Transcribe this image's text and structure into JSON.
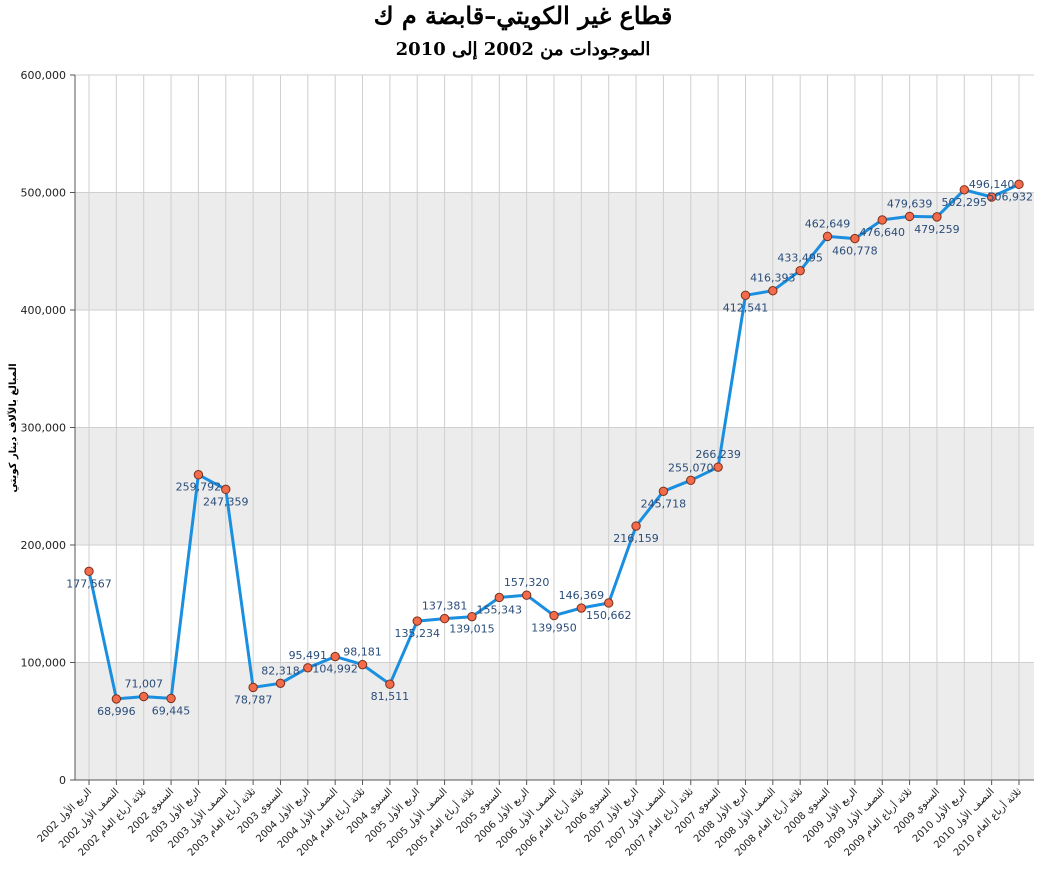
{
  "chart_data": {
    "type": "line",
    "title": "قطاع غير الكويتي–قابضة م ك",
    "subtitle": "الموجودات من 2002 إلى 2010",
    "ylabel": "المبالغ بالآلاف دينار كويتي",
    "xlabel": "",
    "ylim": [
      0,
      600000
    ],
    "yticks": [
      "0",
      "100,000",
      "200,000",
      "300,000",
      "400,000",
      "500,000",
      "600,000"
    ],
    "grid": true,
    "legend": "none",
    "colors": {
      "line": "#1a8fe0",
      "marker_fill": "#f26b4a",
      "marker_stroke": "#7a2f1a",
      "band": "#ececec",
      "grid": "#cfcfcf"
    },
    "categories": [
      "الربع الأول 2002",
      "النصف الأول 2002",
      "ثلاثة أرباع العام 2002",
      "السنوي 2002",
      "الربع الأول 2003",
      "النصف الأول 2003",
      "ثلاثة أرباع العام 2003",
      "السنوي 2003",
      "الربع الأول 2004",
      "النصف الأول 2004",
      "ثلاثة أرباع العام 2004",
      "السنوي 2004",
      "الربع الأول 2005",
      "النصف الأول 2005",
      "ثلاثة أرباع العام 2005",
      "السنوي 2005",
      "الربع الأول 2006",
      "النصف الأول 2006",
      "ثلاثة أرباع العام 2006",
      "السنوي 2006",
      "الربع الأول 2007",
      "النصف الأول 2007",
      "ثلاثة أرباع العام 2007",
      "السنوي 2007",
      "الربع الأول 2008",
      "النصف الأول 2008",
      "ثلاثة أرباع العام 2008",
      "السنوي 2008",
      "الربع الأول 2009",
      "النصف الأول 2009",
      "ثلاثة أرباع العام 2009",
      "السنوي 2009",
      "الربع الأول 2010",
      "النصف الأول 2010",
      "ثلاثة أرباع العام 2010"
    ],
    "values": [
      177567,
      68996,
      71007,
      69445,
      259792,
      247359,
      78787,
      82318,
      95491,
      104992,
      98181,
      81511,
      135234,
      137381,
      139015,
      155343,
      157320,
      139950,
      146369,
      150662,
      216159,
      245718,
      255070,
      266239,
      412541,
      416393,
      433495,
      462649,
      460778,
      476640,
      479639,
      479259,
      502295,
      496140,
      506932
    ],
    "data_labels": [
      "177,567",
      "68,996",
      "71,007",
      "69,445",
      "259,792",
      "247,359",
      "78,787",
      "82,318",
      "95,491",
      "104,992",
      "98,181",
      "81,511",
      "135,234",
      "137,381",
      "139,015",
      "155,343",
      "157,320",
      "139,950",
      "146,369",
      "150,662",
      "216,159",
      "245,718",
      "255,070",
      "266,239",
      "412,541",
      "416,393",
      "433,495",
      "462,649",
      "460,778",
      "476,640",
      "479,639",
      "479,259",
      "502,295",
      "496,140",
      "506,932"
    ],
    "label_positions": [
      "below",
      "below",
      "above",
      "below",
      "below",
      "below",
      "below",
      "above",
      "above",
      "below",
      "above",
      "below",
      "below",
      "above",
      "below",
      "below",
      "above",
      "below",
      "above",
      "below",
      "below",
      "below",
      "above",
      "above",
      "below",
      "above",
      "above",
      "above",
      "below",
      "below",
      "above",
      "below",
      "below",
      "above",
      "below"
    ]
  }
}
